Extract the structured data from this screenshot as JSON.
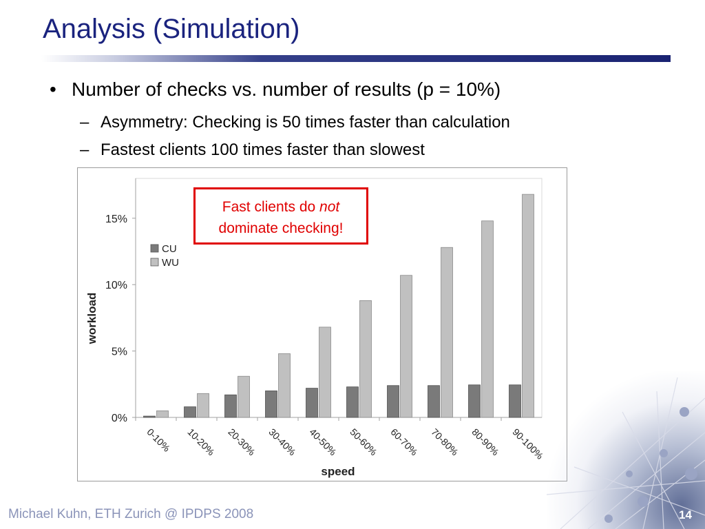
{
  "slide": {
    "title": "Analysis (Simulation)",
    "bullet_marker": "•",
    "bullet": "Number of checks vs. number of results (p = 10%)",
    "sub_marker": "–",
    "sub_bullets": [
      "Asymmetry: Checking is 50 times faster than calculation",
      "Fastest clients 100 times faster than slowest"
    ],
    "footer": "Michael Kuhn, ETH Zurich @ IPDPS 2008",
    "page_number": "14"
  },
  "callout": {
    "text_before": "Fast clients do ",
    "text_italic": "not",
    "text_after": "dominate checking!"
  },
  "colors": {
    "title": "#1a237e",
    "callout": "#e00000",
    "cu": "#7a7a7a",
    "wu": "#c0c0c0"
  },
  "chart_data": {
    "type": "bar",
    "categories": [
      "0-10%",
      "10-20%",
      "20-30%",
      "30-40%",
      "40-50%",
      "50-60%",
      "60-70%",
      "70-80%",
      "80-90%",
      "90-100%"
    ],
    "series": [
      {
        "name": "CU",
        "values": [
          0.1,
          0.8,
          1.7,
          2.0,
          2.2,
          2.3,
          2.4,
          2.4,
          2.45,
          2.45
        ]
      },
      {
        "name": "WU",
        "values": [
          0.5,
          1.8,
          3.1,
          4.8,
          6.8,
          8.8,
          10.7,
          12.8,
          14.8,
          16.8
        ]
      }
    ],
    "xlabel": "speed",
    "ylabel": "workload",
    "ylim": [
      0,
      18
    ],
    "yticks": [
      0,
      5,
      10,
      15
    ],
    "ytick_labels": [
      "0%",
      "5%",
      "10%",
      "15%"
    ],
    "legend_position": "left",
    "grid": false
  }
}
